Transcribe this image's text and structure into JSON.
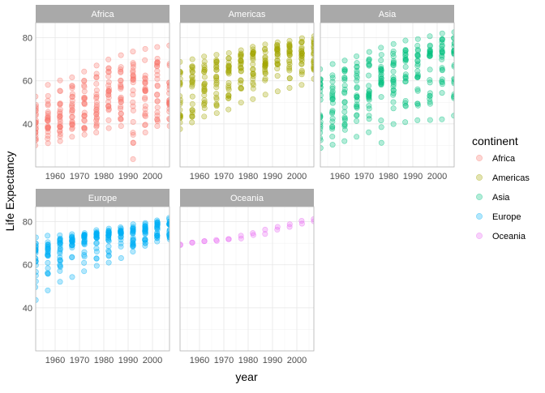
{
  "chart_data": {
    "type": "scatter",
    "xlabel": "year",
    "ylabel": "Life Expectancy",
    "xlim": [
      1952,
      2007
    ],
    "ylim": [
      20,
      87
    ],
    "x_ticks": [
      1960,
      1970,
      1980,
      1990,
      2000
    ],
    "y_ticks": [
      40,
      60,
      80
    ],
    "grid": true,
    "facet_by": "continent",
    "legend": {
      "title": "continent",
      "placement": "right",
      "entries": [
        "Africa",
        "Americas",
        "Asia",
        "Europe",
        "Oceania"
      ]
    },
    "years": [
      1952,
      1957,
      1962,
      1967,
      1972,
      1977,
      1982,
      1987,
      1992,
      1997,
      2002,
      2007
    ],
    "series": [
      {
        "name": "Africa",
        "color": "#F8766D",
        "summary_by_year": {
          "min": [
            30,
            31,
            32,
            34,
            35,
            36,
            38,
            39,
            23.6,
            36,
            39,
            39
          ],
          "q1": [
            35,
            37,
            39,
            41,
            43,
            45,
            46,
            47,
            47,
            46,
            46,
            48
          ],
          "median": [
            38.8,
            40.6,
            42.6,
            44.7,
            47,
            49.3,
            50.8,
            51.6,
            52.4,
            52.8,
            51.2,
            52.9
          ],
          "q3": [
            42,
            45,
            47,
            49,
            52,
            55,
            57,
            59,
            60,
            59,
            59,
            61
          ],
          "max": [
            52.7,
            58.1,
            60.2,
            61.6,
            64.3,
            67.1,
            69.9,
            71.9,
            73.6,
            74.8,
            75.7,
            76.4
          ]
        }
      },
      {
        "name": "Americas",
        "color": "#A3A500",
        "summary_by_year": {
          "min": [
            37.6,
            40.7,
            43.4,
            45,
            46.7,
            49.9,
            51.5,
            53.6,
            55.1,
            56.7,
            58.1,
            60.9
          ],
          "q1": [
            47,
            49,
            52,
            55,
            58,
            60,
            63,
            65,
            67,
            68,
            69,
            70
          ],
          "median": [
            54.7,
            56.1,
            58.3,
            60.5,
            63.4,
            66.4,
            67.4,
            69.5,
            69.9,
            72.1,
            72,
            72.9
          ],
          "q3": [
            60,
            62,
            64,
            66,
            68,
            70,
            72,
            73,
            74,
            75,
            75,
            76
          ],
          "max": [
            68.8,
            70,
            71.3,
            72.1,
            72.9,
            74.2,
            75.8,
            76.9,
            77.9,
            78.6,
            79.8,
            80.7
          ]
        }
      },
      {
        "name": "Asia",
        "color": "#00BF7D",
        "summary_by_year": {
          "min": [
            28.8,
            30.3,
            32,
            34,
            36.1,
            31.2,
            39.9,
            40.8,
            41.7,
            41.8,
            42.1,
            43.8
          ],
          "q1": [
            39,
            42,
            45,
            48,
            51,
            54,
            57,
            59,
            61,
            63,
            64,
            65
          ],
          "median": [
            44.9,
            48.3,
            49.3,
            53.7,
            56.2,
            60.8,
            63.7,
            66.3,
            68.7,
            70.3,
            71,
            72.4
          ],
          "q3": [
            52,
            55,
            58,
            62,
            64,
            66,
            68,
            70,
            72,
            73,
            74,
            75
          ],
          "max": [
            65.4,
            67.8,
            69.4,
            71.4,
            73.4,
            75.4,
            77.1,
            78.7,
            79.4,
            80.7,
            82,
            82.6
          ]
        }
      },
      {
        "name": "Europe",
        "color": "#00B0F6",
        "summary_by_year": {
          "min": [
            43.6,
            48.1,
            52.1,
            54.3,
            57,
            59.5,
            61,
            63.1,
            66.1,
            68.8,
            70.8,
            71.8
          ],
          "q1": [
            61,
            64,
            66,
            68,
            69,
            70,
            70.5,
            71,
            71.5,
            72.5,
            73.5,
            74.5
          ],
          "median": [
            65.9,
            67.7,
            69.5,
            70.6,
            70.9,
            72.3,
            73.5,
            74.8,
            75.5,
            76.1,
            77.5,
            78.6
          ],
          "q3": [
            68,
            69.5,
            70.5,
            71.5,
            72.5,
            73.5,
            74.5,
            75.5,
            76.5,
            77.5,
            78.5,
            79.5
          ],
          "max": [
            72.7,
            73.5,
            73.7,
            74.2,
            74.7,
            76.1,
            76.8,
            77.4,
            78.8,
            79.4,
            80.6,
            81.8
          ]
        }
      },
      {
        "name": "Oceania",
        "color": "#E76BF3",
        "points": [
          {
            "x": 1952,
            "y": 69.1
          },
          {
            "x": 1952,
            "y": 69.4
          },
          {
            "x": 1957,
            "y": 70.3
          },
          {
            "x": 1957,
            "y": 70.3
          },
          {
            "x": 1962,
            "y": 70.9
          },
          {
            "x": 1962,
            "y": 71
          },
          {
            "x": 1967,
            "y": 71.1
          },
          {
            "x": 1967,
            "y": 71.5
          },
          {
            "x": 1972,
            "y": 71.9
          },
          {
            "x": 1972,
            "y": 71.9
          },
          {
            "x": 1977,
            "y": 72.2
          },
          {
            "x": 1977,
            "y": 73.5
          },
          {
            "x": 1982,
            "y": 73.8
          },
          {
            "x": 1982,
            "y": 74.7
          },
          {
            "x": 1987,
            "y": 74.3
          },
          {
            "x": 1987,
            "y": 76.3
          },
          {
            "x": 1992,
            "y": 76.3
          },
          {
            "x": 1992,
            "y": 77.6
          },
          {
            "x": 1997,
            "y": 77.6
          },
          {
            "x": 1997,
            "y": 78.8
          },
          {
            "x": 2002,
            "y": 79.1
          },
          {
            "x": 2002,
            "y": 80.4
          },
          {
            "x": 2007,
            "y": 80.2
          },
          {
            "x": 2007,
            "y": 81.2
          }
        ]
      }
    ]
  }
}
